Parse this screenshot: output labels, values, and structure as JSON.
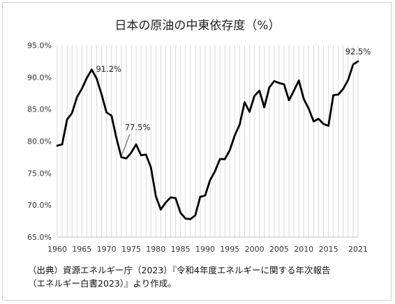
{
  "chart_data": {
    "type": "line",
    "title": "日本の原油の中東依存度（%）",
    "xlabel": "",
    "ylabel": "",
    "xlim": [
      1960,
      2021
    ],
    "ylim": [
      65,
      95
    ],
    "x_ticks": [
      "1960",
      "1965",
      "1970",
      "1975",
      "1980",
      "1985",
      "1990",
      "1995",
      "2000",
      "2005",
      "2010",
      "2015",
      "2021"
    ],
    "y_ticks": [
      "65.0%",
      "70.0%",
      "75.0%",
      "80.0%",
      "85.0%",
      "90.0%",
      "95.0%"
    ],
    "grid": "vertical",
    "series": [
      {
        "name": "",
        "color": "#000000",
        "x": [
          1960,
          1961,
          1962,
          1963,
          1964,
          1965,
          1966,
          1967,
          1968,
          1969,
          1970,
          1971,
          1972,
          1973,
          1974,
          1975,
          1976,
          1977,
          1978,
          1979,
          1980,
          1981,
          1982,
          1983,
          1984,
          1985,
          1986,
          1987,
          1988,
          1989,
          1990,
          1991,
          1992,
          1993,
          1994,
          1995,
          1996,
          1997,
          1998,
          1999,
          2000,
          2001,
          2002,
          2003,
          2004,
          2005,
          2006,
          2007,
          2008,
          2009,
          2010,
          2011,
          2012,
          2013,
          2014,
          2015,
          2016,
          2017,
          2018,
          2019,
          2020,
          2021
        ],
        "values": [
          79.3,
          79.5,
          83.4,
          84.4,
          86.9,
          88.2,
          89.9,
          91.2,
          89.8,
          87.3,
          84.5,
          84.0,
          80.5,
          77.5,
          77.3,
          78.2,
          79.5,
          77.8,
          77.9,
          75.9,
          71.4,
          69.3,
          70.4,
          71.2,
          71.1,
          68.8,
          67.9,
          67.8,
          68.4,
          71.3,
          71.5,
          73.9,
          75.3,
          77.2,
          77.2,
          78.6,
          80.9,
          82.6,
          86.1,
          84.6,
          87.1,
          87.9,
          85.3,
          88.4,
          89.4,
          89.1,
          88.9,
          86.4,
          87.9,
          89.5,
          86.6,
          85.1,
          83.1,
          83.5,
          82.7,
          82.4,
          87.2,
          87.3,
          88.2,
          89.6,
          92.0,
          92.5
        ]
      }
    ],
    "annotations": [
      {
        "text": "91.2%",
        "x": 1967,
        "value": 91.2
      },
      {
        "text": "77.5%",
        "x": 1973,
        "value": 77.5
      },
      {
        "text": "92.5%",
        "x": 2021,
        "value": 92.5
      }
    ]
  },
  "source": {
    "line1": "（出典）資源エネルギー庁（2023）『令和4年度エネルギーに関する年次報告",
    "line2": "（エネルギー白書2023）』より作成。"
  }
}
